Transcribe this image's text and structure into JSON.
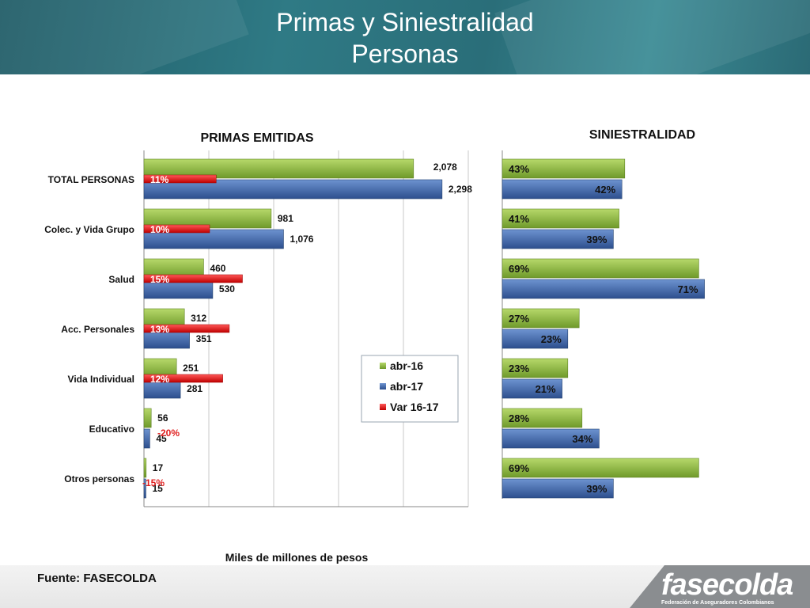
{
  "header": {
    "title_line1": "Primas y Siniestralidad",
    "title_line2": "Personas"
  },
  "footer": {
    "source_label": "Fuente:",
    "source_value": "FASECOLDA",
    "logo_name": "fasecolda",
    "logo_subtitle": "Federación de Aseguradores Colombianos"
  },
  "colors": {
    "abr16": "#8fbf3f",
    "abr17": "#3f66a8",
    "var": "#e02020",
    "var_text": "#e02020"
  },
  "chart_data": [
    {
      "type": "bar",
      "orientation": "horizontal",
      "title": "PRIMAS EMITIDAS",
      "xlabel": "Miles de millones de pesos",
      "grid": true,
      "xlim": [
        0,
        2500
      ],
      "categories": [
        "TOTAL PERSONAS",
        "Colec. y Vida Grupo",
        "Salud",
        "Acc. Personales",
        "Vida Individual",
        "Educativo",
        "Otros personas"
      ],
      "series": [
        {
          "name": "abr-16",
          "values": [
            2078,
            981,
            460,
            312,
            251,
            56,
            17
          ],
          "labels": [
            "2,078",
            "981",
            "460",
            "312",
            "251",
            "56",
            "17"
          ]
        },
        {
          "name": "abr-17",
          "values": [
            2298,
            1076,
            530,
            351,
            281,
            45,
            15
          ],
          "labels": [
            "2,298",
            "1,076",
            "530",
            "351",
            "281",
            "45",
            "15"
          ]
        },
        {
          "name": "Var 16-17",
          "values": [
            11,
            10,
            15,
            13,
            12,
            -20,
            -15
          ],
          "labels": [
            "11%",
            "10%",
            "15%",
            "13%",
            "12%",
            "-20%",
            "-15%"
          ]
        }
      ],
      "legend": {
        "position": "right-center",
        "entries": [
          "abr-16",
          "abr-17",
          "Var 16-17"
        ]
      }
    },
    {
      "type": "bar",
      "orientation": "horizontal",
      "title": "SINIESTRALIDAD",
      "grid": false,
      "categories": [
        "TOTAL PERSONAS",
        "Colec. y Vida Grupo",
        "Salud",
        "Acc. Personales",
        "Vida Individual",
        "Educativo",
        "Otros personas"
      ],
      "series": [
        {
          "name": "abr-16",
          "values": [
            43,
            41,
            69,
            27,
            23,
            28,
            69
          ],
          "labels": [
            "43%",
            "41%",
            "69%",
            "27%",
            "23%",
            "28%",
            "69%"
          ]
        },
        {
          "name": "abr-17",
          "values": [
            42,
            39,
            71,
            23,
            21,
            34,
            39
          ],
          "labels": [
            "42%",
            "39%",
            "71%",
            "23%",
            "21%",
            "34%",
            "39%"
          ]
        }
      ]
    }
  ]
}
